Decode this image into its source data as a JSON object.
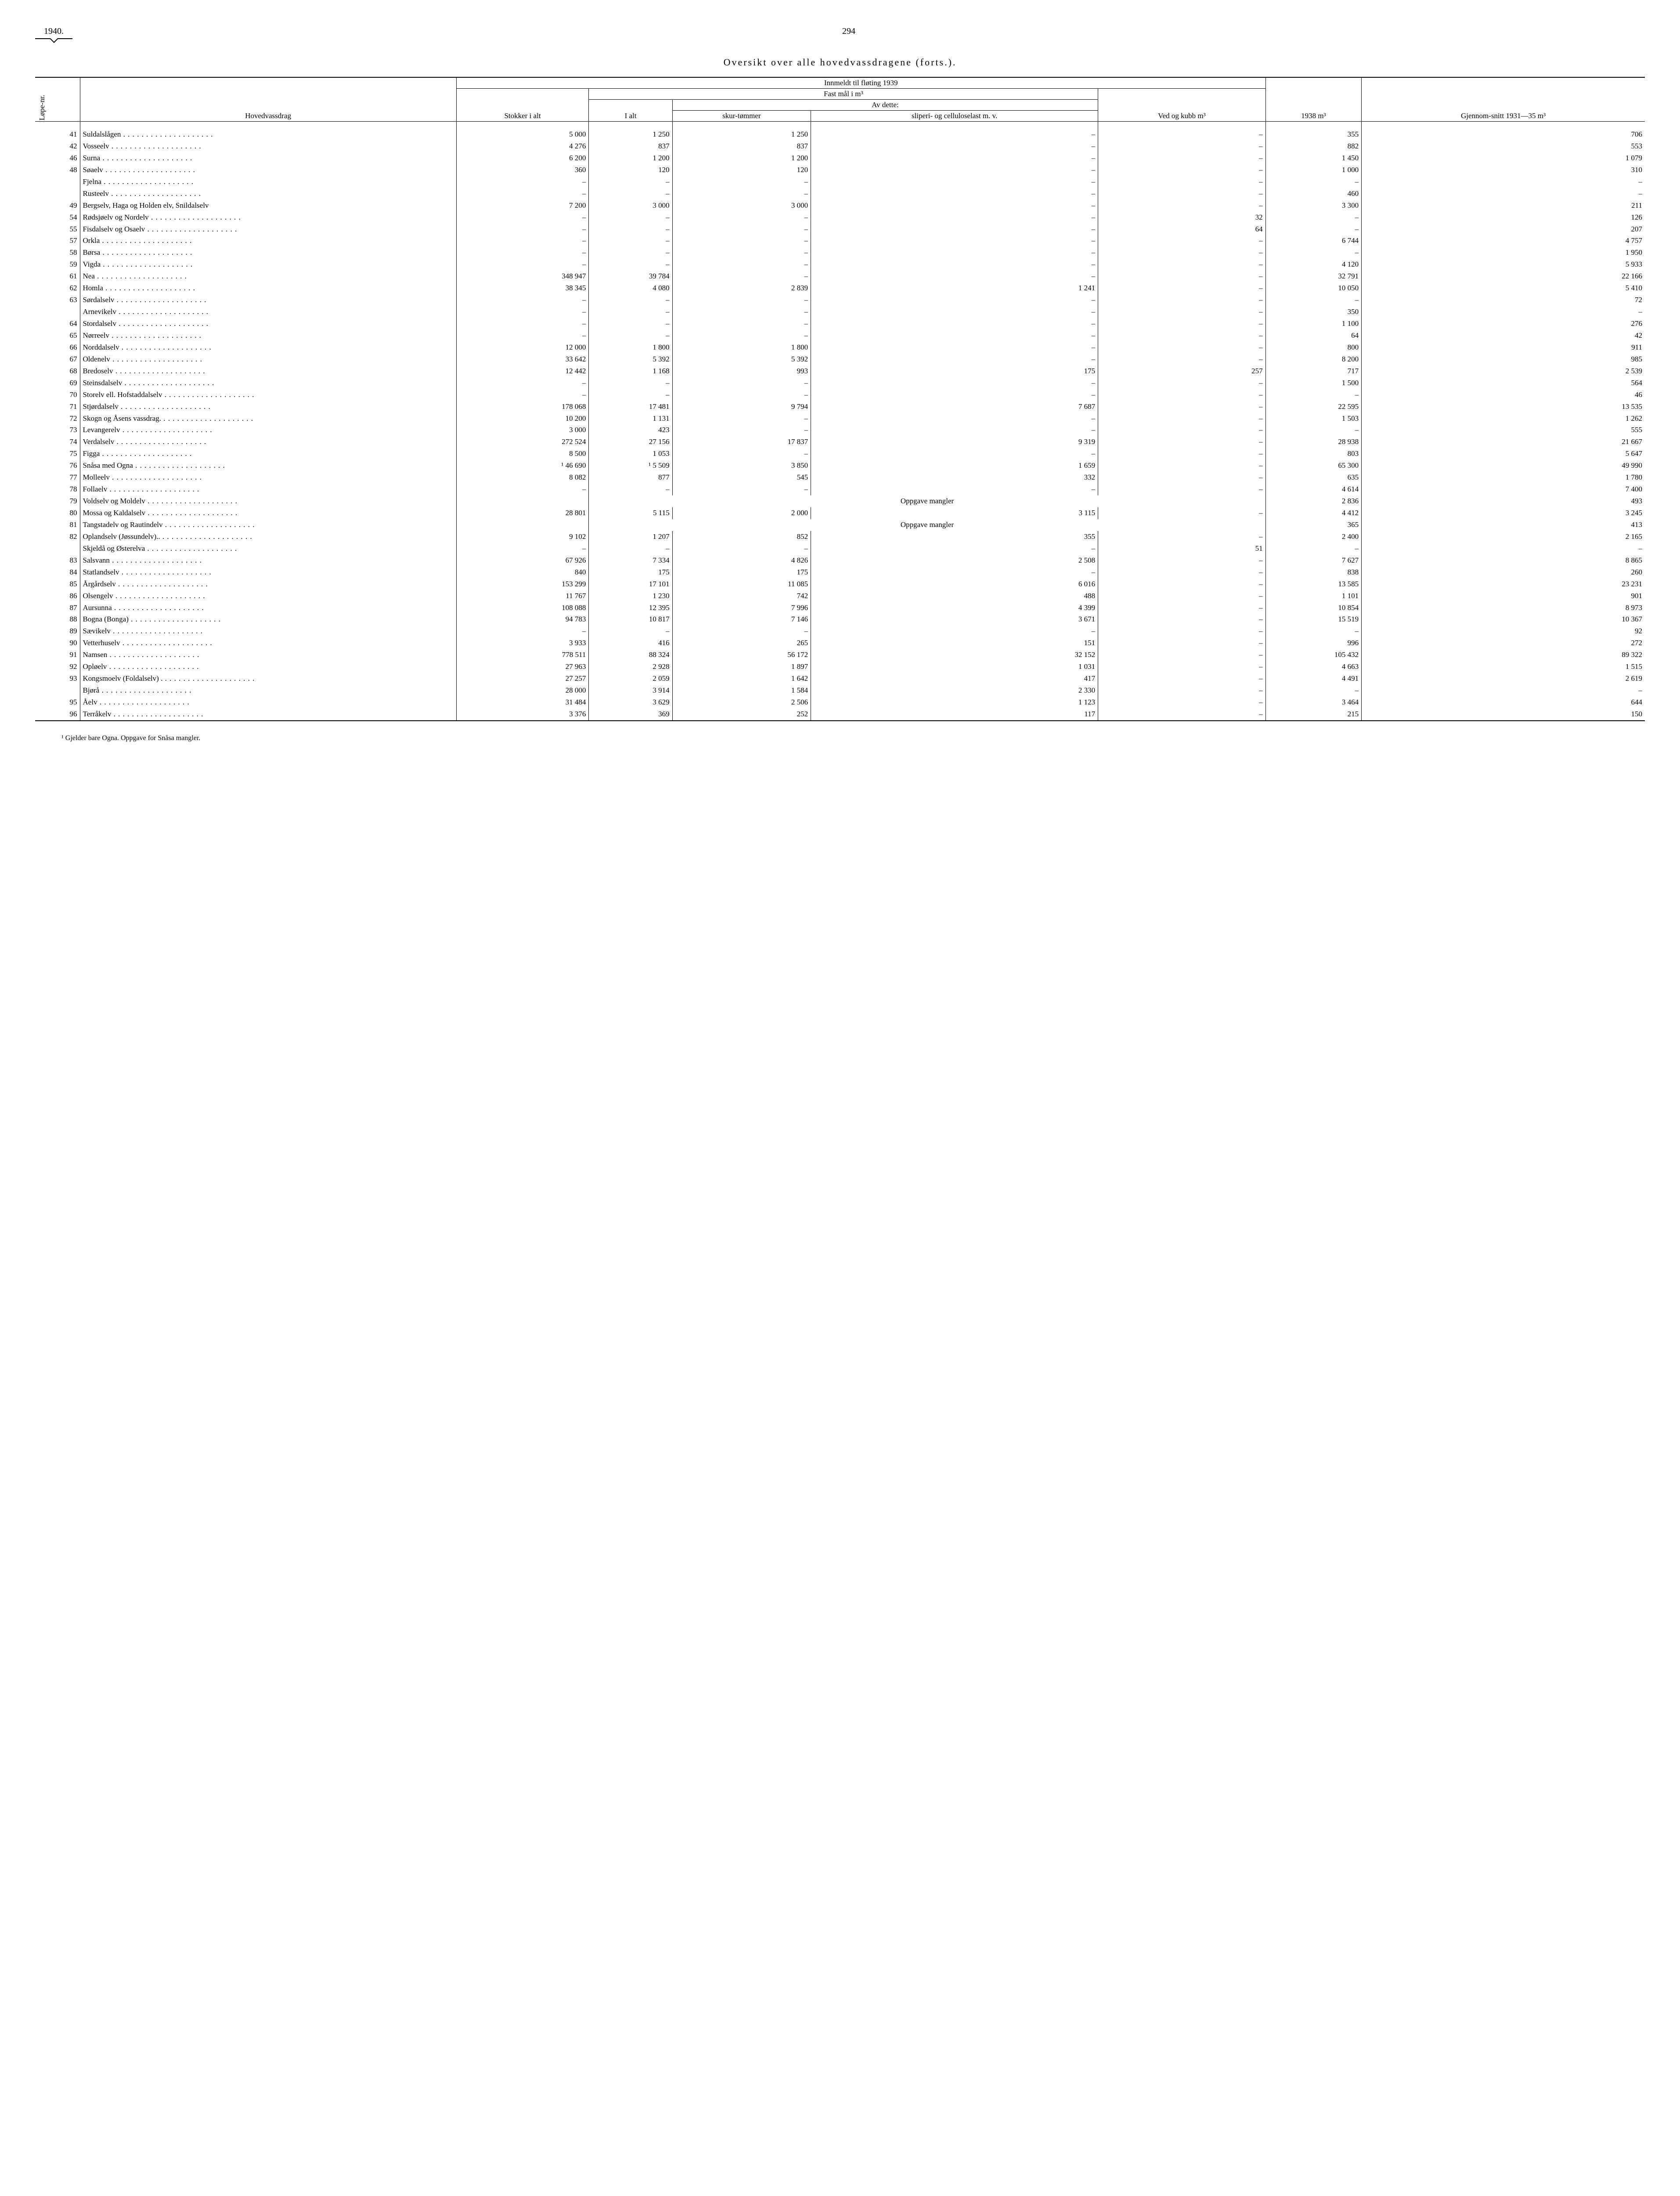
{
  "header": {
    "year": "1940.",
    "page": "294"
  },
  "title": "Oversikt over alle hovedvassdragene (forts.).",
  "columns": {
    "lope": "Løpe-nr.",
    "hovedvassdrag": "Hovedvassdrag",
    "innmeldt": "Innmeldt til fløting 1939",
    "stokker": "Stokker i alt",
    "fastmal": "Fast mål i m³",
    "ialt": "I alt",
    "avdette": "Av dette:",
    "skur": "skur-tømmer",
    "sliperi": "sliperi- og celluloselast m. v.",
    "ved": "Ved og kubb m³",
    "y1938": "1938 m³",
    "gjennom": "Gjennom-snitt 1931—35 m³"
  },
  "rows": [
    {
      "n": "41",
      "name": "Suldalslågen",
      "stokker": "5 000",
      "ialt": "1 250",
      "skur": "1 250",
      "slip": "–",
      "ved": "–",
      "y38": "355",
      "avg": "706"
    },
    {
      "n": "42",
      "name": "Vosseelv",
      "stokker": "4 276",
      "ialt": "837",
      "skur": "837",
      "slip": "–",
      "ved": "–",
      "y38": "882",
      "avg": "553"
    },
    {
      "n": "46",
      "name": "Surna",
      "stokker": "6 200",
      "ialt": "1 200",
      "skur": "1 200",
      "slip": "–",
      "ved": "–",
      "y38": "1 450",
      "avg": "1 079"
    },
    {
      "n": "48",
      "name": "Søaelv",
      "stokker": "360",
      "ialt": "120",
      "skur": "120",
      "slip": "–",
      "ved": "–",
      "y38": "1 000",
      "avg": "310"
    },
    {
      "n": "",
      "name": "Fjelna",
      "stokker": "–",
      "ialt": "–",
      "skur": "–",
      "slip": "–",
      "ved": "–",
      "y38": "–",
      "avg": "–"
    },
    {
      "n": "",
      "name": "Rusteelv",
      "stokker": "–",
      "ialt": "–",
      "skur": "–",
      "slip": "–",
      "ved": "–",
      "y38": "460",
      "avg": "–"
    },
    {
      "n": "49",
      "name": "Bergselv, Haga og Holden elv, Snildalselv",
      "stokker": "7 200",
      "ialt": "3 000",
      "skur": "3 000",
      "slip": "–",
      "ved": "–",
      "y38": "3 300",
      "avg": "211",
      "wrap": true
    },
    {
      "n": "54",
      "name": "Rødsjøelv og Nordelv",
      "stokker": "–",
      "ialt": "–",
      "skur": "–",
      "slip": "–",
      "ved": "32",
      "y38": "–",
      "avg": "126"
    },
    {
      "n": "55",
      "name": "Fisdalselv og Osaelv",
      "stokker": "–",
      "ialt": "–",
      "skur": "–",
      "slip": "–",
      "ved": "64",
      "y38": "–",
      "avg": "207"
    },
    {
      "n": "57",
      "name": "Orkla",
      "stokker": "–",
      "ialt": "–",
      "skur": "–",
      "slip": "–",
      "ved": "–",
      "y38": "6 744",
      "avg": "4 757"
    },
    {
      "n": "58",
      "name": "Børsa",
      "stokker": "–",
      "ialt": "–",
      "skur": "–",
      "slip": "–",
      "ved": "–",
      "y38": "–",
      "avg": "1 950"
    },
    {
      "n": "59",
      "name": "Vigda",
      "stokker": "–",
      "ialt": "–",
      "skur": "–",
      "slip": "–",
      "ved": "–",
      "y38": "4 120",
      "avg": "5 933"
    },
    {
      "n": "61",
      "name": "Nea",
      "stokker": "348 947",
      "ialt": "39 784",
      "skur": "–",
      "slip": "–",
      "ved": "–",
      "y38": "32 791",
      "avg": "22 166"
    },
    {
      "n": "62",
      "name": "Homla",
      "stokker": "38 345",
      "ialt": "4 080",
      "skur": "2 839",
      "slip": "1 241",
      "ved": "–",
      "y38": "10 050",
      "avg": "5 410"
    },
    {
      "n": "63",
      "name": "Sørdalselv",
      "stokker": "–",
      "ialt": "–",
      "skur": "–",
      "slip": "–",
      "ved": "–",
      "y38": "–",
      "avg": "72"
    },
    {
      "n": "",
      "name": "Arnevikelv",
      "stokker": "–",
      "ialt": "–",
      "skur": "–",
      "slip": "–",
      "ved": "–",
      "y38": "350",
      "avg": "–"
    },
    {
      "n": "64",
      "name": "Stordalselv",
      "stokker": "–",
      "ialt": "–",
      "skur": "–",
      "slip": "–",
      "ved": "–",
      "y38": "1 100",
      "avg": "276"
    },
    {
      "n": "65",
      "name": "Nørreelv",
      "stokker": "–",
      "ialt": "–",
      "skur": "–",
      "slip": "–",
      "ved": "–",
      "y38": "64",
      "avg": "42"
    },
    {
      "n": "66",
      "name": "Norddalselv",
      "stokker": "12 000",
      "ialt": "1 800",
      "skur": "1 800",
      "slip": "–",
      "ved": "–",
      "y38": "800",
      "avg": "911"
    },
    {
      "n": "67",
      "name": "Oldenelv",
      "stokker": "33 642",
      "ialt": "5 392",
      "skur": "5 392",
      "slip": "–",
      "ved": "–",
      "y38": "8 200",
      "avg": "985"
    },
    {
      "n": "68",
      "name": "Bredoselv",
      "stokker": "12 442",
      "ialt": "1 168",
      "skur": "993",
      "slip": "175",
      "ved": "257",
      "y38": "717",
      "avg": "2 539"
    },
    {
      "n": "69",
      "name": "Steinsdalselv",
      "stokker": "–",
      "ialt": "–",
      "skur": "–",
      "slip": "–",
      "ved": "–",
      "y38": "1 500",
      "avg": "564"
    },
    {
      "n": "70",
      "name": "Storelv ell. Hofstaddalselv",
      "stokker": "–",
      "ialt": "–",
      "skur": "–",
      "slip": "–",
      "ved": "–",
      "y38": "–",
      "avg": "46"
    },
    {
      "n": "71",
      "name": "Stjørdalselv",
      "stokker": "178 068",
      "ialt": "17 481",
      "skur": "9 794",
      "slip": "7 687",
      "ved": "–",
      "y38": "22 595",
      "avg": "13 535"
    },
    {
      "n": "72",
      "name": "Skogn og Åsens vassdrag.",
      "stokker": "10 200",
      "ialt": "1 131",
      "skur": "–",
      "slip": "–",
      "ved": "–",
      "y38": "1 503",
      "avg": "1 262"
    },
    {
      "n": "73",
      "name": "Levangerelv",
      "stokker": "3 000",
      "ialt": "423",
      "skur": "–",
      "slip": "–",
      "ved": "–",
      "y38": "–",
      "avg": "555"
    },
    {
      "n": "74",
      "name": "Verdalselv",
      "stokker": "272 524",
      "ialt": "27 156",
      "skur": "17 837",
      "slip": "9 319",
      "ved": "–",
      "y38": "28 938",
      "avg": "21 667"
    },
    {
      "n": "75",
      "name": "Figga",
      "stokker": "8 500",
      "ialt": "1 053",
      "skur": "–",
      "slip": "–",
      "ved": "–",
      "y38": "803",
      "avg": "5 647"
    },
    {
      "n": "76",
      "name": "Snåsa med Ogna",
      "stokker": "¹ 46 690",
      "ialt": "¹   5 509",
      "skur": "3 850",
      "slip": "1 659",
      "ved": "–",
      "y38": "65 300",
      "avg": "49 990"
    },
    {
      "n": "77",
      "name": "Molleelv",
      "stokker": "8 082",
      "ialt": "877",
      "skur": "545",
      "slip": "332",
      "ved": "–",
      "y38": "635",
      "avg": "1 780"
    },
    {
      "n": "78",
      "name": "Follaelv",
      "stokker": "–",
      "ialt": "–",
      "skur": "–",
      "slip": "–",
      "ved": "–",
      "y38": "4 614",
      "avg": "7 400"
    },
    {
      "n": "79",
      "name": "Voldselv og Moldelv",
      "mangler": "Oppgave mangler",
      "y38": "2 836",
      "avg": "493"
    },
    {
      "n": "80",
      "name": "Mossa og Kaldalselv",
      "stokker": "28 801",
      "ialt": "5 115",
      "skur": "2 000",
      "slip": "3 115",
      "ved": "–",
      "y38": "4 412",
      "avg": "3 245"
    },
    {
      "n": "81",
      "name": "Tangstadelv og Rautindelv",
      "mangler": "Oppgave mangler",
      "y38": "365",
      "avg": "413"
    },
    {
      "n": "82",
      "name": "Oplandselv (Jøssundelv)..",
      "stokker": "9 102",
      "ialt": "1 207",
      "skur": "852",
      "slip": "355",
      "ved": "–",
      "y38": "2 400",
      "avg": "2 165"
    },
    {
      "n": "",
      "name": "Skjeldå og Østerelva",
      "stokker": "–",
      "ialt": "–",
      "skur": "–",
      "slip": "–",
      "ved": "51",
      "y38": "–",
      "avg": "–"
    },
    {
      "n": "83",
      "name": "Salsvann",
      "stokker": "67 926",
      "ialt": "7 334",
      "skur": "4 826",
      "slip": "2 508",
      "ved": "–",
      "y38": "7 627",
      "avg": "8 865"
    },
    {
      "n": "84",
      "name": "Statlandselv",
      "stokker": "840",
      "ialt": "175",
      "skur": "175",
      "slip": "–",
      "ved": "–",
      "y38": "838",
      "avg": "260"
    },
    {
      "n": "85",
      "name": "Årgårdselv",
      "stokker": "153 299",
      "ialt": "17 101",
      "skur": "11 085",
      "slip": "6 016",
      "ved": "–",
      "y38": "13 585",
      "avg": "23 231"
    },
    {
      "n": "86",
      "name": "Olsengelv",
      "stokker": "11 767",
      "ialt": "1 230",
      "skur": "742",
      "slip": "488",
      "ved": "–",
      "y38": "1 101",
      "avg": "901"
    },
    {
      "n": "87",
      "name": "Aursunna",
      "stokker": "108 088",
      "ialt": "12 395",
      "skur": "7 996",
      "slip": "4 399",
      "ved": "–",
      "y38": "10 854",
      "avg": "8 973"
    },
    {
      "n": "88",
      "name": "Bogna (Bonga)",
      "stokker": "94 783",
      "ialt": "10 817",
      "skur": "7 146",
      "slip": "3 671",
      "ved": "–",
      "y38": "15 519",
      "avg": "10 367"
    },
    {
      "n": "89",
      "name": "Sævikelv",
      "stokker": "–",
      "ialt": "–",
      "skur": "–",
      "slip": "–",
      "ved": "–",
      "y38": "–",
      "avg": "92"
    },
    {
      "n": "90",
      "name": "Vetterhuselv",
      "stokker": "3 933",
      "ialt": "416",
      "skur": "265",
      "slip": "151",
      "ved": "–",
      "y38": "996",
      "avg": "272"
    },
    {
      "n": "91",
      "name": "Namsen",
      "stokker": "778 511",
      "ialt": "88 324",
      "skur": "56 172",
      "slip": "32 152",
      "ved": "–",
      "y38": "105 432",
      "avg": "89 322"
    },
    {
      "n": "92",
      "name": "Opløelv",
      "stokker": "27 963",
      "ialt": "2 928",
      "skur": "1 897",
      "slip": "1 031",
      "ved": "–",
      "y38": "4 663",
      "avg": "1 515"
    },
    {
      "n": "93",
      "name": "Kongsmoelv (Foldalselv) .",
      "stokker": "27 257",
      "ialt": "2 059",
      "skur": "1 642",
      "slip": "417",
      "ved": "–",
      "y38": "4 491",
      "avg": "2 619"
    },
    {
      "n": "",
      "name": "Bjørå",
      "stokker": "28 000",
      "ialt": "3 914",
      "skur": "1 584",
      "slip": "2 330",
      "ved": "–",
      "y38": "–",
      "avg": "–"
    },
    {
      "n": "95",
      "name": "Åelv",
      "stokker": "31 484",
      "ialt": "3 629",
      "skur": "2 506",
      "slip": "1 123",
      "ved": "–",
      "y38": "3 464",
      "avg": "644"
    },
    {
      "n": "96",
      "name": "Terråkelv",
      "stokker": "3 376",
      "ialt": "369",
      "skur": "252",
      "slip": "117",
      "ved": "–",
      "y38": "215",
      "avg": "150"
    }
  ],
  "footnote": "¹ Gjelder bare Ogna. Oppgave for Snåsa mangler."
}
